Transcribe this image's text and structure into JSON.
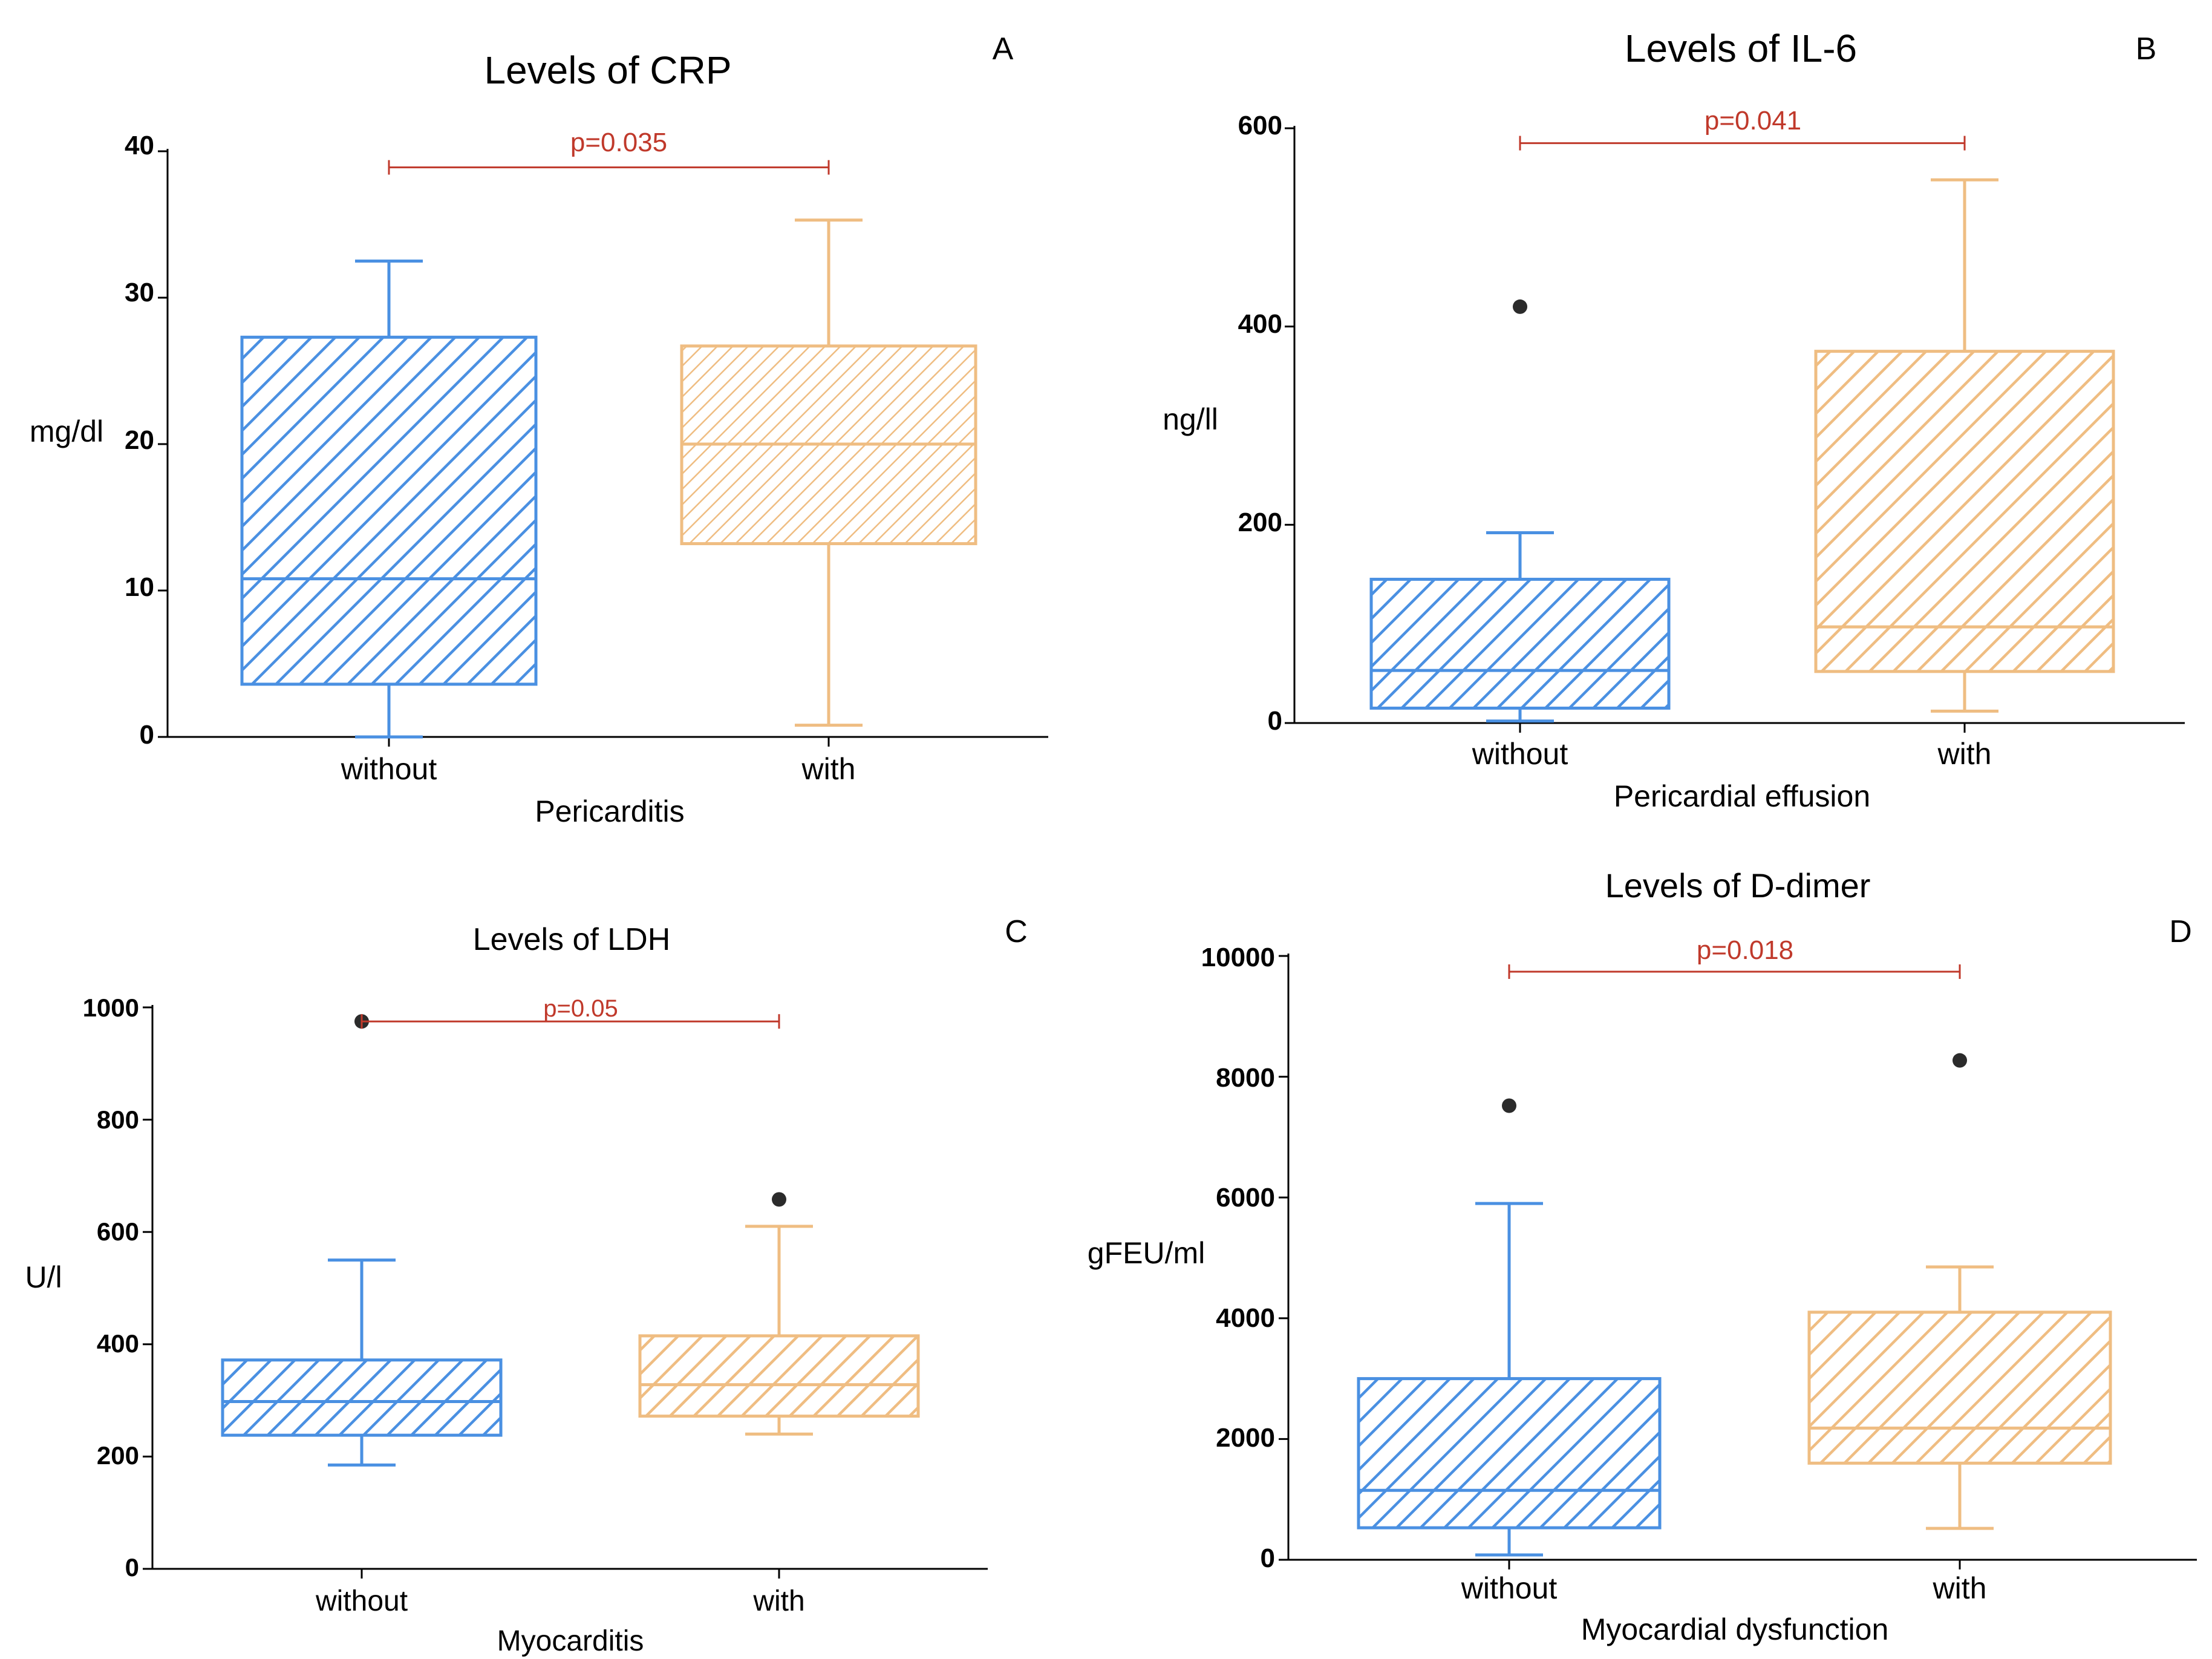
{
  "colors": {
    "without": "#4a90e2",
    "with": "#efbd82",
    "significance": "#c0392b",
    "outlier": "#2b2b2b",
    "axis": "#000000"
  },
  "chart_data": [
    {
      "panel": "A",
      "type": "box",
      "title": "Levels of CRP",
      "xlabel": "Pericarditis",
      "ylabel": "mg/dl",
      "ylim": [
        0,
        40
      ],
      "yticks": [
        0,
        10,
        20,
        30,
        40
      ],
      "tick_labels": [
        "0",
        "10",
        "20",
        "30",
        "40"
      ],
      "categories": [
        "without",
        "with"
      ],
      "series": [
        {
          "name": "without",
          "min": 0,
          "q1": 3.6,
          "median": 10.8,
          "q3": 27.3,
          "max": 32.5,
          "outliers": []
        },
        {
          "name": "with",
          "min": 0.8,
          "q1": 13.2,
          "median": 20,
          "q3": 26.7,
          "max": 35.3,
          "outliers": []
        }
      ],
      "significance": {
        "label": "p=0.035",
        "y": 38.9
      }
    },
    {
      "panel": "B",
      "type": "box",
      "title": "Levels of IL-6",
      "xlabel": "Pericardial effusion",
      "ylabel": "ng/ll",
      "ylim": [
        0,
        600
      ],
      "yticks": [
        0,
        200,
        400,
        600
      ],
      "tick_labels": [
        "0",
        "200",
        "400",
        "600"
      ],
      "categories": [
        "without",
        "with"
      ],
      "series": [
        {
          "name": "without",
          "min": 2,
          "q1": 15,
          "median": 53,
          "q3": 145,
          "max": 192,
          "outliers": [
            420
          ]
        },
        {
          "name": "with",
          "min": 12,
          "q1": 52,
          "median": 97,
          "q3": 375,
          "max": 548,
          "outliers": []
        }
      ],
      "significance": {
        "label": "p=0.041",
        "y": 585
      }
    },
    {
      "panel": "C",
      "type": "box",
      "title": "Levels of LDH",
      "xlabel": "Myocarditis",
      "ylabel": "U/l",
      "ylim": [
        0,
        1000
      ],
      "yticks": [
        0,
        200,
        400,
        600,
        800,
        1000
      ],
      "tick_labels": [
        "0",
        "200",
        "400",
        "600",
        "800",
        "1000"
      ],
      "categories": [
        "without",
        "with"
      ],
      "series": [
        {
          "name": "without",
          "min": 185,
          "q1": 238,
          "median": 298,
          "q3": 372,
          "max": 550,
          "outliers": [
            975
          ]
        },
        {
          "name": "with",
          "min": 240,
          "q1": 272,
          "median": 328,
          "q3": 415,
          "max": 610,
          "outliers": [
            658
          ]
        }
      ],
      "significance": {
        "label": "p=0.05",
        "y": 975
      }
    },
    {
      "panel": "D",
      "type": "box",
      "title": "Levels of D-dimer",
      "xlabel": "Myocardial dysfunction",
      "ylabel": "gFEU/ml",
      "ylim": [
        0,
        10000
      ],
      "yticks": [
        0,
        2000,
        4000,
        6000,
        8000,
        10000
      ],
      "tick_labels": [
        "0",
        "2000",
        "4000",
        "6000",
        "8000",
        "10000"
      ],
      "categories": [
        "without",
        "with"
      ],
      "series": [
        {
          "name": "without",
          "min": 80,
          "q1": 530,
          "median": 1150,
          "q3": 3000,
          "max": 5900,
          "outliers": [
            7520
          ]
        },
        {
          "name": "with",
          "min": 520,
          "q1": 1600,
          "median": 2180,
          "q3": 4100,
          "max": 4850,
          "outliers": [
            8270
          ]
        }
      ],
      "significance": {
        "label": "p=0.018",
        "y": 9740
      }
    }
  ]
}
